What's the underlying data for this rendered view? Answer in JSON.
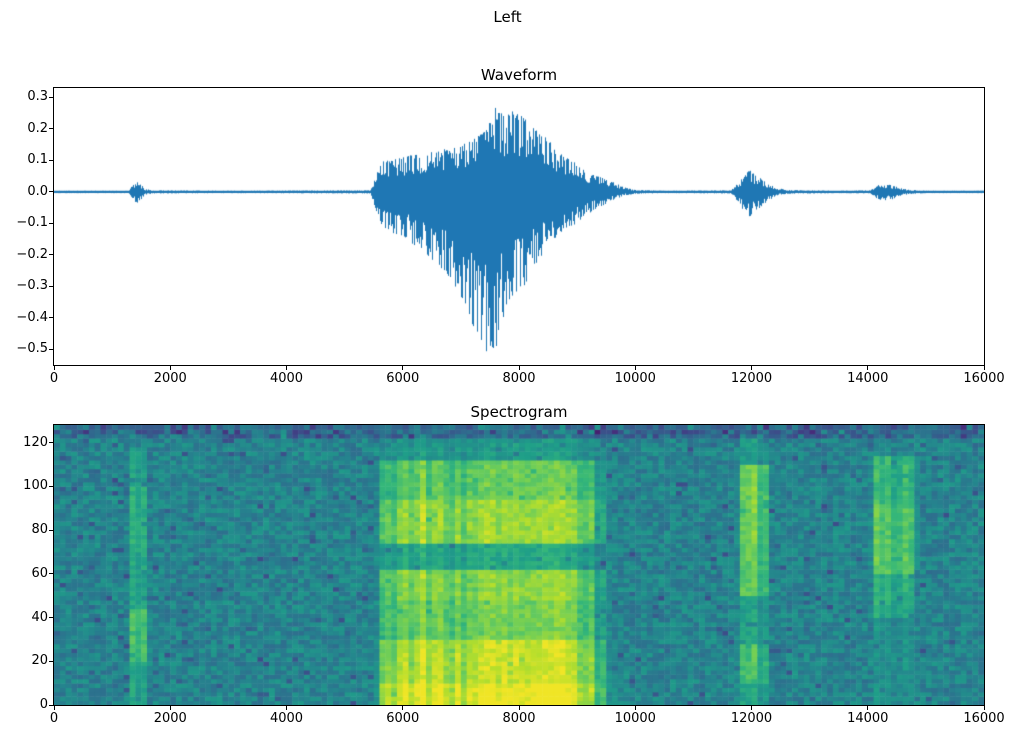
{
  "figure": {
    "suptitle": "Left",
    "background_color": "#ffffff",
    "axis_color": "#000000"
  },
  "chart_data": [
    {
      "type": "line",
      "title": "Waveform",
      "xlabel": "",
      "ylabel": "",
      "xlim": [
        0,
        16000
      ],
      "ylim": [
        -0.55,
        0.33
      ],
      "xticks": [
        0,
        2000,
        4000,
        6000,
        8000,
        10000,
        12000,
        14000,
        16000
      ],
      "xtick_labels": [
        "0",
        "2000",
        "4000",
        "6000",
        "8000",
        "10000",
        "12000",
        "14000",
        "16000"
      ],
      "yticks": [
        0.3,
        0.2,
        0.1,
        0.0,
        -0.1,
        -0.2,
        -0.3,
        -0.4,
        -0.5
      ],
      "ytick_labels": [
        "0.3",
        "0.2",
        "0.1",
        "0.0",
        "−0.1",
        "−0.2",
        "−0.3",
        "−0.4",
        "−0.5"
      ],
      "line_color": "#1f77b4",
      "summary": "Audio waveform: near-silent baseline with a small transient near sample 1400, a loud burst from ~5600 to ~9800 (min ≈ −0.52, max ≈ +0.27 near sample 7500), a medium burst ~11750–12400 (≈ ±0.08), and a small burst ~14100–14700 (≈ ±0.03).",
      "envelope_x_lo_hi": [
        [
          0,
          -0.004,
          0.004
        ],
        [
          1280,
          -0.004,
          0.004
        ],
        [
          1350,
          -0.02,
          0.02
        ],
        [
          1420,
          -0.038,
          0.032
        ],
        [
          1480,
          -0.03,
          0.028
        ],
        [
          1560,
          -0.01,
          0.01
        ],
        [
          1700,
          -0.005,
          0.005
        ],
        [
          3000,
          -0.004,
          0.004
        ],
        [
          5450,
          -0.005,
          0.005
        ],
        [
          5560,
          -0.07,
          0.06
        ],
        [
          5650,
          -0.11,
          0.1
        ],
        [
          5800,
          -0.13,
          0.1
        ],
        [
          6000,
          -0.14,
          0.11
        ],
        [
          6200,
          -0.17,
          0.12
        ],
        [
          6400,
          -0.2,
          0.13
        ],
        [
          6600,
          -0.24,
          0.13
        ],
        [
          6800,
          -0.27,
          0.14
        ],
        [
          7000,
          -0.33,
          0.15
        ],
        [
          7150,
          -0.4,
          0.16
        ],
        [
          7300,
          -0.47,
          0.18
        ],
        [
          7450,
          -0.52,
          0.2
        ],
        [
          7600,
          -0.5,
          0.27
        ],
        [
          7750,
          -0.4,
          0.24
        ],
        [
          7900,
          -0.33,
          0.26
        ],
        [
          8050,
          -0.31,
          0.24
        ],
        [
          8200,
          -0.28,
          0.22
        ],
        [
          8350,
          -0.22,
          0.19
        ],
        [
          8500,
          -0.18,
          0.17
        ],
        [
          8650,
          -0.14,
          0.13
        ],
        [
          8800,
          -0.12,
          0.11
        ],
        [
          9000,
          -0.1,
          0.09
        ],
        [
          9200,
          -0.07,
          0.06
        ],
        [
          9350,
          -0.05,
          0.05
        ],
        [
          9500,
          -0.04,
          0.04
        ],
        [
          9650,
          -0.025,
          0.03
        ],
        [
          9800,
          -0.012,
          0.015
        ],
        [
          10000,
          -0.006,
          0.006
        ],
        [
          10500,
          -0.004,
          0.004
        ],
        [
          11650,
          -0.005,
          0.005
        ],
        [
          11780,
          -0.035,
          0.03
        ],
        [
          11900,
          -0.07,
          0.06
        ],
        [
          11980,
          -0.08,
          0.07
        ],
        [
          12050,
          -0.06,
          0.055
        ],
        [
          12150,
          -0.05,
          0.045
        ],
        [
          12250,
          -0.035,
          0.03
        ],
        [
          12400,
          -0.015,
          0.015
        ],
        [
          12600,
          -0.006,
          0.006
        ],
        [
          13500,
          -0.004,
          0.004
        ],
        [
          14050,
          -0.005,
          0.005
        ],
        [
          14150,
          -0.02,
          0.02
        ],
        [
          14250,
          -0.028,
          0.025
        ],
        [
          14400,
          -0.025,
          0.022
        ],
        [
          14550,
          -0.015,
          0.013
        ],
        [
          14700,
          -0.007,
          0.007
        ],
        [
          15000,
          -0.004,
          0.004
        ],
        [
          16000,
          -0.004,
          0.004
        ]
      ]
    },
    {
      "type": "heatmap",
      "title": "Spectrogram",
      "colormap": "viridis",
      "xlabel": "",
      "ylabel": "",
      "xlim": [
        0,
        16000
      ],
      "ylim": [
        0,
        128
      ],
      "xticks": [
        0,
        2000,
        4000,
        6000,
        8000,
        10000,
        12000,
        14000,
        16000
      ],
      "xtick_labels": [
        "0",
        "2000",
        "4000",
        "6000",
        "8000",
        "10000",
        "12000",
        "14000",
        "16000"
      ],
      "yticks": [
        0,
        20,
        40,
        60,
        80,
        100,
        120
      ],
      "ytick_labels": [
        "0",
        "20",
        "40",
        "60",
        "80",
        "100",
        "120"
      ],
      "grid_cols": 160,
      "grid_rows": 64,
      "base_level": 0.45,
      "noise_amplitude": 0.18,
      "summary": "Viridis spectrogram of the same signal: teal noise floor with dark speckles, a narrow bright column near sample 1400, a broad high-energy region ~5500–9800 (brightest yellow below bin 30, green-yellow bins 75–110, darker band near bins 62–74), a bright column ~11700–12400, and a patch ~14000–14950 strongest around bins 60–110.",
      "events": [
        {
          "t0": 1280,
          "t1": 1620,
          "taper_in": 60,
          "taper_out": 60,
          "bands": [
            [
              0,
              20,
              0.6
            ],
            [
              20,
              45,
              0.72
            ],
            [
              45,
              70,
              0.6
            ],
            [
              70,
              100,
              0.64
            ],
            [
              100,
              118,
              0.58
            ],
            [
              118,
              128,
              0.42
            ]
          ]
        },
        {
          "t0": 1620,
          "t1": 1800,
          "taper_in": 40,
          "taper_out": 80,
          "bands": [
            [
              8,
              60,
              0.52
            ]
          ]
        },
        {
          "t0": 5500,
          "t1": 9800,
          "taper_in": 200,
          "taper_out": 700,
          "bands": [
            [
              0,
              10,
              0.95
            ],
            [
              10,
              30,
              0.88
            ],
            [
              30,
              48,
              0.76
            ],
            [
              48,
              62,
              0.8
            ],
            [
              62,
              74,
              0.58
            ],
            [
              74,
              95,
              0.82
            ],
            [
              95,
              112,
              0.74
            ],
            [
              112,
              122,
              0.52
            ],
            [
              122,
              128,
              0.44
            ]
          ]
        },
        {
          "t0": 11700,
          "t1": 12400,
          "taper_in": 120,
          "taper_out": 150,
          "bands": [
            [
              0,
              10,
              0.56
            ],
            [
              10,
              28,
              0.68
            ],
            [
              28,
              50,
              0.55
            ],
            [
              50,
              75,
              0.73
            ],
            [
              75,
              110,
              0.75
            ],
            [
              110,
              122,
              0.52
            ]
          ]
        },
        {
          "t0": 14000,
          "t1": 14950,
          "taper_in": 150,
          "taper_out": 200,
          "bands": [
            [
              0,
              40,
              0.5
            ],
            [
              40,
              60,
              0.62
            ],
            [
              60,
              92,
              0.73
            ],
            [
              92,
              115,
              0.66
            ],
            [
              115,
              128,
              0.44
            ]
          ]
        }
      ]
    }
  ]
}
